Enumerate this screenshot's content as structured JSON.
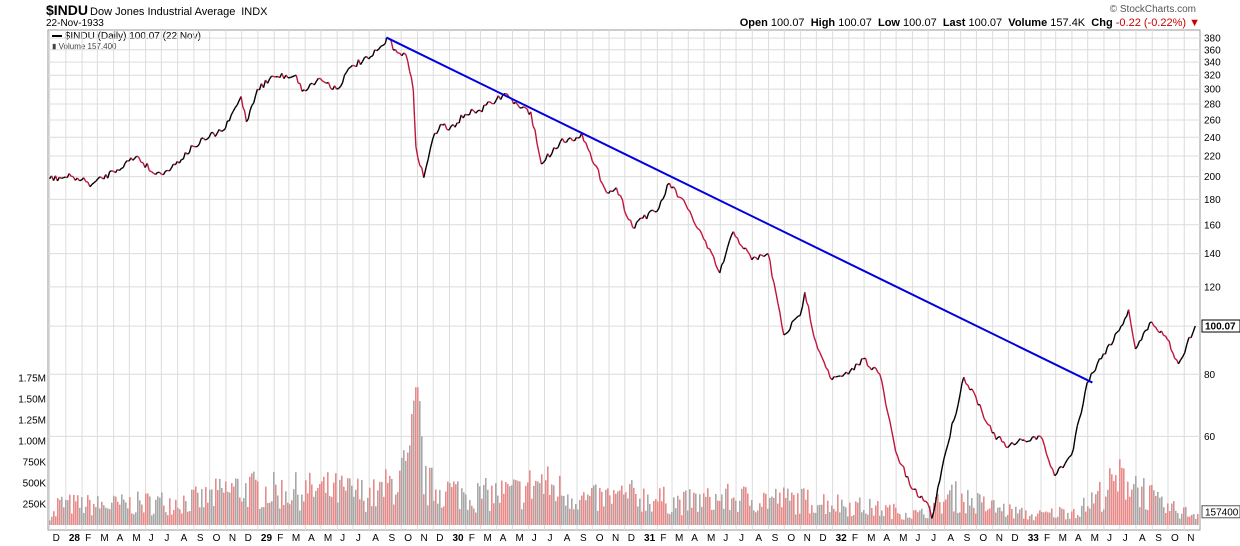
{
  "header": {
    "symbol": "$INDU",
    "name": "Dow Jones Industrial Average",
    "exchange": "INDX",
    "date": "22-Nov-1933",
    "brand": "© StockCharts.com",
    "open_label": "Open",
    "open": "100.07",
    "high_label": "High",
    "high": "100.07",
    "low_label": "Low",
    "low": "100.07",
    "last_label": "Last",
    "last": "100.07",
    "volume_label": "Volume",
    "volume": "157.4K",
    "chg_label": "Chg",
    "chg": "-0.22 (-0.22%)"
  },
  "legend": {
    "price": "$INDU (Daily) 100.07 (22 Nov)",
    "volume": "Volume 157,400"
  },
  "colors": {
    "price_up": "#000000",
    "price_down": "#c0143c",
    "trendline": "#0000e0",
    "vol_up": "#a8a8a8",
    "vol_down": "#e88a8a",
    "grid": "#dcdcdc"
  },
  "chart_data": {
    "type": "line",
    "scale": "log",
    "price_ticks": [
      380,
      360,
      340,
      320,
      300,
      280,
      260,
      240,
      220,
      200,
      180,
      160,
      140,
      120,
      100,
      80,
      60
    ],
    "volume_ticks": [
      "1.75M",
      "1.50M",
      "1.25M",
      "1.00M",
      "750K",
      "500K",
      "250K"
    ],
    "last_price_label": "100.07",
    "last_volume_label": "157400",
    "x_tick_labels": [
      "D",
      "28",
      "F",
      "M",
      "A",
      "M",
      "J",
      "J",
      "A",
      "S",
      "O",
      "N",
      "D",
      "29",
      "F",
      "M",
      "A",
      "M",
      "J",
      "J",
      "A",
      "S",
      "O",
      "N",
      "D",
      "30",
      "F",
      "M",
      "A",
      "M",
      "J",
      "J",
      "A",
      "S",
      "O",
      "N",
      "D",
      "31",
      "F",
      "M",
      "A",
      "M",
      "J",
      "J",
      "A",
      "S",
      "O",
      "N",
      "D",
      "32",
      "F",
      "M",
      "A",
      "M",
      "J",
      "J",
      "A",
      "S",
      "O",
      "N",
      "D",
      "33",
      "F",
      "M",
      "A",
      "M",
      "J",
      "J",
      "A",
      "S",
      "O",
      "N"
    ],
    "price_series": [
      [
        "1927-12-01",
        198
      ],
      [
        "1928-01-15",
        200
      ],
      [
        "1928-02-20",
        193
      ],
      [
        "1928-04-01",
        205
      ],
      [
        "1928-05-15",
        220
      ],
      [
        "1928-06-20",
        202
      ],
      [
        "1928-07-20",
        208
      ],
      [
        "1928-08-31",
        230
      ],
      [
        "1928-09-30",
        240
      ],
      [
        "1928-10-31",
        250
      ],
      [
        "1928-11-30",
        290
      ],
      [
        "1928-12-10",
        258
      ],
      [
        "1928-12-31",
        300
      ],
      [
        "1929-01-31",
        318
      ],
      [
        "1929-03-15",
        320
      ],
      [
        "1929-03-26",
        297
      ],
      [
        "1929-04-30",
        315
      ],
      [
        "1929-05-31",
        300
      ],
      [
        "1929-06-30",
        335
      ],
      [
        "1929-07-31",
        345
      ],
      [
        "1929-08-31",
        370
      ],
      [
        "1929-09-03",
        381
      ],
      [
        "1929-09-20",
        360
      ],
      [
        "1929-10-10",
        352
      ],
      [
        "1929-10-24",
        299
      ],
      [
        "1929-10-29",
        230
      ],
      [
        "1929-11-13",
        199
      ],
      [
        "1929-11-30",
        238
      ],
      [
        "1929-12-15",
        255
      ],
      [
        "1929-12-31",
        248
      ],
      [
        "1930-01-31",
        267
      ],
      [
        "1930-02-28",
        272
      ],
      [
        "1930-03-31",
        285
      ],
      [
        "1930-04-17",
        294
      ],
      [
        "1930-05-15",
        275
      ],
      [
        "1930-06-05",
        270
      ],
      [
        "1930-06-25",
        212
      ],
      [
        "1930-07-31",
        235
      ],
      [
        "1930-08-31",
        240
      ],
      [
        "1930-09-10",
        245
      ],
      [
        "1930-09-30",
        215
      ],
      [
        "1930-10-31",
        185
      ],
      [
        "1930-11-15",
        190
      ],
      [
        "1930-12-16",
        158
      ],
      [
        "1930-12-31",
        165
      ],
      [
        "1931-01-31",
        170
      ],
      [
        "1931-02-24",
        194
      ],
      [
        "1931-03-31",
        172
      ],
      [
        "1931-04-30",
        150
      ],
      [
        "1931-05-31",
        128
      ],
      [
        "1931-06-26",
        155
      ],
      [
        "1931-07-31",
        136
      ],
      [
        "1931-08-31",
        140
      ],
      [
        "1931-09-30",
        96
      ],
      [
        "1931-10-31",
        105
      ],
      [
        "1931-11-09",
        117
      ],
      [
        "1931-11-30",
        93
      ],
      [
        "1931-12-31",
        78
      ],
      [
        "1932-01-31",
        80
      ],
      [
        "1932-02-29",
        86
      ],
      [
        "1932-03-31",
        80
      ],
      [
        "1932-04-30",
        56
      ],
      [
        "1932-05-31",
        47
      ],
      [
        "1932-06-30",
        44
      ],
      [
        "1932-07-08",
        41
      ],
      [
        "1932-07-31",
        54
      ],
      [
        "1932-08-31",
        73
      ],
      [
        "1932-09-07",
        79
      ],
      [
        "1932-09-30",
        72
      ],
      [
        "1932-10-31",
        61
      ],
      [
        "1932-11-30",
        57
      ],
      [
        "1932-12-31",
        59
      ],
      [
        "1933-01-31",
        60
      ],
      [
        "1933-02-27",
        50
      ],
      [
        "1933-03-31",
        55
      ],
      [
        "1933-04-30",
        77
      ],
      [
        "1933-05-31",
        88
      ],
      [
        "1933-06-30",
        98
      ],
      [
        "1933-07-18",
        108
      ],
      [
        "1933-07-31",
        90
      ],
      [
        "1933-08-31",
        102
      ],
      [
        "1933-09-30",
        94
      ],
      [
        "1933-10-21",
        84
      ],
      [
        "1933-11-22",
        100.07
      ]
    ],
    "trendline": [
      [
        "1929-09-03",
        381
      ],
      [
        "1933-05-10",
        77
      ]
    ],
    "volume_series": [
      [
        "1927-12",
        300000
      ],
      [
        "1928-03",
        280000
      ],
      [
        "1928-06",
        320000
      ],
      [
        "1928-09",
        360000
      ],
      [
        "1928-11",
        520000
      ],
      [
        "1929-02",
        480000
      ],
      [
        "1929-05",
        500000
      ],
      [
        "1929-08",
        430000
      ],
      [
        "1929-10",
        800000
      ],
      [
        "1929-10-29",
        1640000
      ],
      [
        "1929-11",
        560000
      ],
      [
        "1930-02",
        420000
      ],
      [
        "1930-05",
        470000
      ],
      [
        "1930-06",
        620000
      ],
      [
        "1930-09",
        360000
      ],
      [
        "1930-12",
        420000
      ],
      [
        "1931-03",
        320000
      ],
      [
        "1931-06",
        380000
      ],
      [
        "1931-09",
        370000
      ],
      [
        "1931-12",
        330000
      ],
      [
        "1932-03",
        240000
      ],
      [
        "1932-06",
        150000
      ],
      [
        "1932-08",
        420000
      ],
      [
        "1932-10",
        280000
      ],
      [
        "1933-01",
        130000
      ],
      [
        "1933-04",
        220000
      ],
      [
        "1933-06",
        560000
      ],
      [
        "1933-07",
        700000
      ],
      [
        "1933-09",
        270000
      ],
      [
        "1933-11",
        157400
      ]
    ]
  }
}
